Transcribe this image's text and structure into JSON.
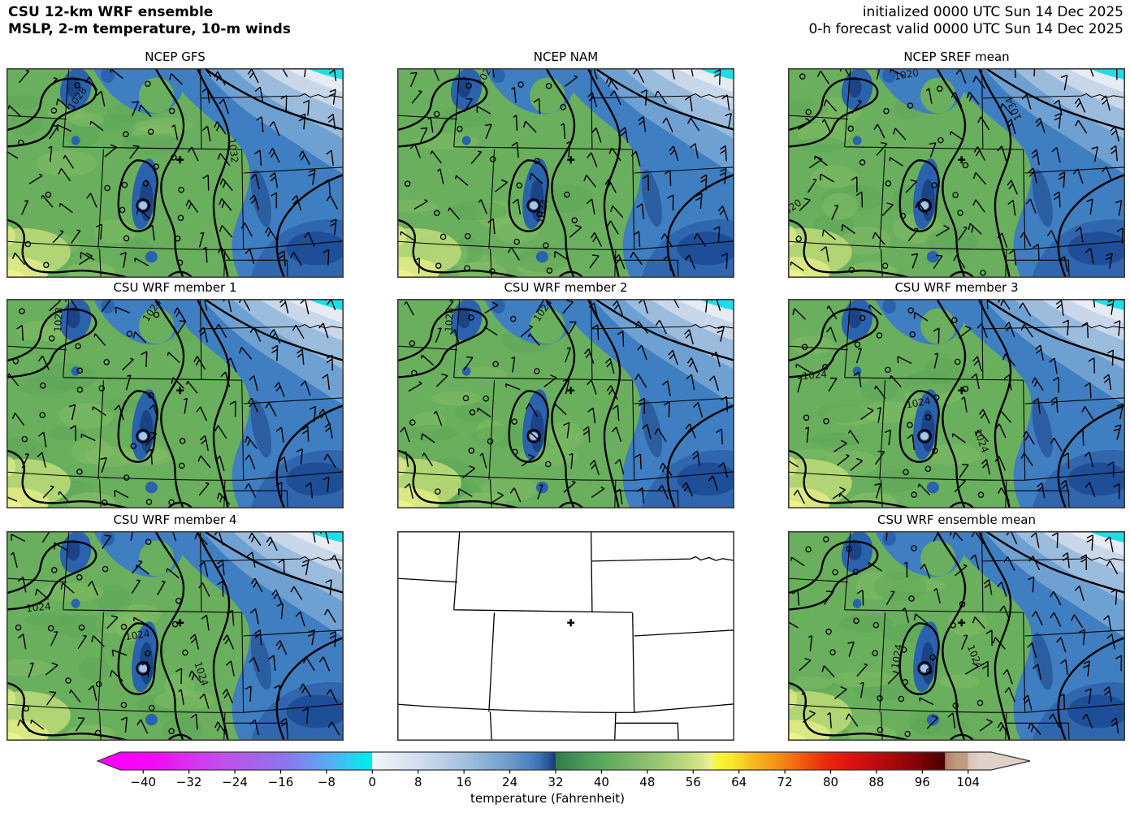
{
  "header": {
    "title_line1": "CSU 12-km WRF ensemble",
    "title_line2": "MSLP, 2-m temperature, 10-m winds",
    "init_line1": "initialized 0000 UTC Sun 14 Dec 2025",
    "init_line2": "0-h forecast valid 0000 UTC Sun 14 Dec 2025"
  },
  "marker": {
    "symbol": "+",
    "fx": 0.515,
    "fy": 0.437
  },
  "panels": [
    {
      "id": "ncep-gfs",
      "title": "NCEP GFS",
      "type": "forecast",
      "pressure_labels": [
        {
          "text": "1028",
          "fx": 0.218,
          "fy": 0.137,
          "rot": -55
        },
        {
          "text": "1032",
          "fx": 0.663,
          "fy": 0.38,
          "rot": 82
        }
      ]
    },
    {
      "id": "ncep-nam",
      "title": "NCEP NAM",
      "type": "forecast",
      "pressure_labels": [
        {
          "text": "1024",
          "fx": 0.27,
          "fy": 0.02,
          "rot": -60
        },
        {
          "text": "1024",
          "fx": 0.441,
          "fy": 0.67,
          "rot": -80
        }
      ]
    },
    {
      "id": "ncep-sref-mean",
      "title": "NCEP SREF mean",
      "type": "forecast",
      "pressure_labels": [
        {
          "text": "1020",
          "fx": 0.353,
          "fy": 0.03,
          "rot": -10
        },
        {
          "text": "1034",
          "fx": 0.678,
          "fy": 0.171,
          "rot": -115
        },
        {
          "text": "1020",
          "fx": 0.012,
          "fy": 0.667,
          "rot": -35
        }
      ]
    },
    {
      "id": "csu-wrf-member-1",
      "title": "CSU WRF member 1",
      "type": "forecast",
      "pressure_labels": [
        {
          "text": "1028",
          "fx": 0.164,
          "fy": 0.085,
          "rot": -87
        },
        {
          "text": "1024",
          "fx": 0.44,
          "fy": 0.048,
          "rot": -55
        }
      ]
    },
    {
      "id": "csu-wrf-member-2",
      "title": "CSU WRF member 2",
      "type": "forecast",
      "pressure_labels": [
        {
          "text": "1028",
          "fx": 0.164,
          "fy": 0.085,
          "rot": -87
        },
        {
          "text": "1024",
          "fx": 0.44,
          "fy": 0.048,
          "rot": -55
        }
      ]
    },
    {
      "id": "csu-wrf-member-3",
      "title": "CSU WRF member 3",
      "type": "forecast",
      "pressure_labels": [
        {
          "text": "1024",
          "fx": 0.08,
          "fy": 0.364,
          "rot": -5
        },
        {
          "text": "1024",
          "fx": 0.388,
          "fy": 0.496,
          "rot": -10
        },
        {
          "text": "1024",
          "fx": 0.564,
          "fy": 0.667,
          "rot": 70
        }
      ]
    },
    {
      "id": "csu-wrf-member-4",
      "title": "CSU WRF member 4",
      "type": "forecast",
      "pressure_labels": [
        {
          "text": "1024",
          "fx": 0.096,
          "fy": 0.364,
          "rot": -5
        },
        {
          "text": "1024",
          "fx": 0.39,
          "fy": 0.496,
          "rot": -8
        },
        {
          "text": "1024",
          "fx": 0.569,
          "fy": 0.67,
          "rot": 72
        }
      ]
    },
    {
      "id": "blank-map",
      "title": "",
      "type": "outline",
      "pressure_labels": []
    },
    {
      "id": "csu-wrf-ensemble-mean",
      "title": "CSU WRF ensemble mean",
      "type": "forecast",
      "pressure_labels": [
        {
          "text": "1024",
          "fx": 0.333,
          "fy": 0.585,
          "rot": -80
        },
        {
          "text": "1024",
          "fx": 0.545,
          "fy": 0.59,
          "rot": 68
        }
      ]
    }
  ],
  "map_palette": {
    "green_base": "#69af5d",
    "green_dark": "#5ea657",
    "green_light": "#84bd66",
    "yellow_green": "#b9d877",
    "yellow_green2": "#d9e883",
    "yellow": "#eef28a",
    "blue_main": "#3f7ec0",
    "blue_mid": "#6fa0d2",
    "blue_light": "#9cbcdd",
    "blue_pale": "#c8d7ea",
    "blue_white": "#e7ecf4",
    "cyan": "#1edde9",
    "blue_dark": "#2a62ae",
    "blue_core": "#1b4385",
    "blue_deep": "#1c4a94",
    "blue_se": "#2f66ae",
    "cold_spot_light": "#a9c4e1",
    "contour": "#000000",
    "border": "#000000",
    "frame": "#3c3c3c"
  },
  "colorbar": {
    "axis_label": "temperature (Fahrenheit)",
    "ticks": [
      -40,
      -32,
      -24,
      -16,
      -8,
      0,
      8,
      16,
      24,
      32,
      40,
      48,
      56,
      64,
      72,
      80,
      88,
      96,
      104
    ],
    "range": [
      -44,
      108
    ],
    "stops": [
      [
        -44,
        "#ff00ff"
      ],
      [
        -38,
        "#ef0bf4"
      ],
      [
        -32,
        "#d832ee"
      ],
      [
        -26,
        "#bf4fec"
      ],
      [
        -20,
        "#a464ea"
      ],
      [
        -15,
        "#8a77ec"
      ],
      [
        -11,
        "#6f93f0"
      ],
      [
        -7,
        "#50b2f4"
      ],
      [
        -4,
        "#2fcdf4"
      ],
      [
        -1,
        "#04e8ee"
      ],
      [
        -0.05,
        "#04e8ee"
      ],
      [
        0,
        "#f2f6fc"
      ],
      [
        4,
        "#e2eaf5"
      ],
      [
        8,
        "#d0deef"
      ],
      [
        12,
        "#bbd0e7"
      ],
      [
        16,
        "#a3c1df"
      ],
      [
        20,
        "#88b0d6"
      ],
      [
        24,
        "#6b9bca"
      ],
      [
        27,
        "#4f87c0"
      ],
      [
        29,
        "#3c74b4"
      ],
      [
        30.5,
        "#2a5a9e"
      ],
      [
        31.95,
        "#173a72"
      ],
      [
        32,
        "#2e7e48"
      ],
      [
        36,
        "#469457"
      ],
      [
        40,
        "#5aa85c"
      ],
      [
        44,
        "#74b364"
      ],
      [
        48,
        "#8ec06e"
      ],
      [
        52,
        "#aacf78"
      ],
      [
        55,
        "#c2da80"
      ],
      [
        57.5,
        "#d9e588"
      ],
      [
        59,
        "#eef293"
      ],
      [
        60,
        "#f8f83a"
      ],
      [
        63,
        "#f9e52e"
      ],
      [
        66,
        "#f7bd24"
      ],
      [
        70,
        "#f4981b"
      ],
      [
        73,
        "#f07613"
      ],
      [
        76,
        "#ec500d"
      ],
      [
        79,
        "#e82b0b"
      ],
      [
        83,
        "#df1410"
      ],
      [
        87,
        "#c40e0e"
      ],
      [
        91,
        "#a40909"
      ],
      [
        95,
        "#820404"
      ],
      [
        98,
        "#5e0101"
      ],
      [
        99.9,
        "#4a0000"
      ],
      [
        100,
        "#b27f63"
      ],
      [
        102,
        "#c29a7f"
      ],
      [
        103.9,
        "#c29a7f"
      ],
      [
        104,
        "#d8c2b2"
      ],
      [
        106,
        "#e0d2c8"
      ],
      [
        108,
        "#e0d2c8"
      ]
    ]
  }
}
